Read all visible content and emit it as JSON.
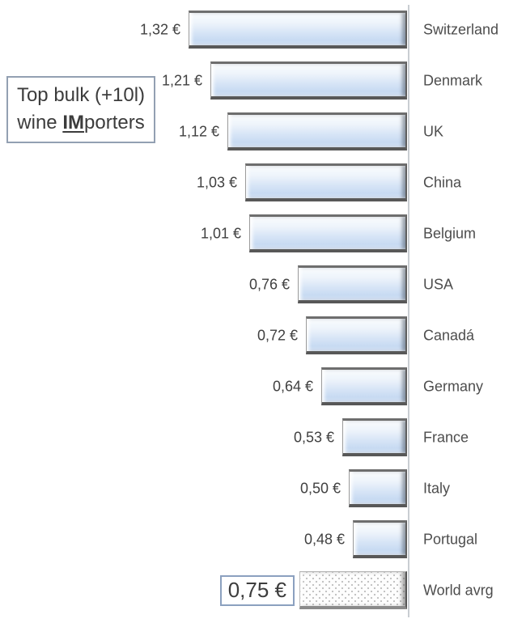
{
  "annotation": {
    "line1": "Top bulk (+10l)",
    "line2_pre": "wine ",
    "line2_strong": "IM",
    "line2_post": "porters"
  },
  "chart_data": {
    "type": "bar",
    "orientation": "horizontal",
    "bar_anchor": "bars are right-aligned to a common vertical baseline and grow leftward",
    "title": "Top bulk (+10l) wine IMporters",
    "unit": "€",
    "categories": [
      "Switzerland",
      "Denmark",
      "UK",
      "China",
      "Belgium",
      "USA",
      "Canadá",
      "Germany",
      "France",
      "Italy",
      "Portugal",
      "World avrg"
    ],
    "values": [
      1.32,
      1.21,
      1.12,
      1.03,
      1.01,
      0.76,
      0.72,
      0.64,
      0.53,
      0.5,
      0.48,
      0.75
    ],
    "value_labels": [
      "1,32 €",
      "1,21 €",
      "1,12 €",
      "1,03 €",
      "1,01 €",
      "0,76 €",
      "0,72 €",
      "0,64 €",
      "0,53 €",
      "0,48 €",
      "0,75 €"
    ],
    "value_labels_full": [
      "1,32 €",
      "1,21 €",
      "1,12 €",
      "1,03 €",
      "1,01 €",
      "0,76 €",
      "0,72 €",
      "0,64 €",
      "0,53 €",
      "0,50 €",
      "0,48 €",
      "0,75 €"
    ],
    "xlim": [
      0.2,
      1.32
    ],
    "grid": false,
    "legend": false,
    "highlight_row": {
      "category": "World avrg",
      "value_label": "0,75 €",
      "style": "dotted fill bar with boxed value label"
    },
    "colors": {
      "bar_fill_top": "#fafcfe",
      "bar_fill_bottom": "#c7daf2",
      "bar_edge": "#5f5f5f",
      "axis_line": "#c9cdd2",
      "text": "#404040",
      "annotation_border": "#93a0b2",
      "highlight_box_border": "#8ba0bf",
      "dotted_fill_dot": "#bdbdbd"
    }
  }
}
